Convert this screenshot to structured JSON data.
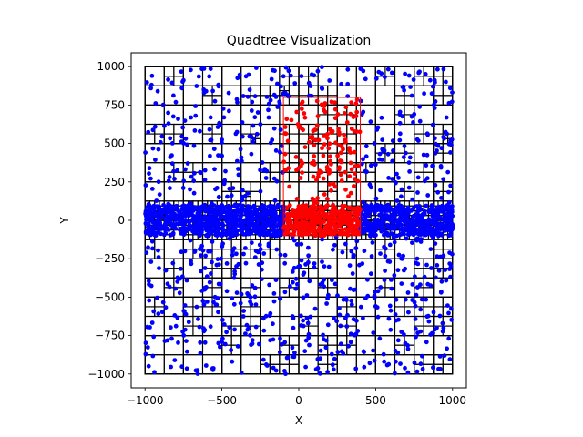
{
  "chart_data": {
    "type": "scatter",
    "title": "Quadtree Visualization",
    "xlabel": "X",
    "ylabel": "Y",
    "xlim": [
      -1090,
      1090
    ],
    "ylim": [
      -1090,
      1090
    ],
    "xticks": [
      -1000,
      -500,
      0,
      500,
      1000
    ],
    "yticks": [
      -1000,
      -750,
      -500,
      -250,
      0,
      250,
      500,
      750,
      1000
    ],
    "xtick_labels": [
      "−1000",
      "−500",
      "0",
      "500",
      "1000"
    ],
    "ytick_labels": [
      "−1000",
      "−750",
      "−500",
      "−250",
      "0",
      "250",
      "500",
      "750",
      "1000"
    ],
    "grid": false,
    "colors": {
      "points": "#0000ff",
      "query_points": "#ff0000",
      "quadtree_lines": "#000000",
      "query_rect": "#ff0000"
    },
    "boundary": {
      "x": [
        -1000,
        1000
      ],
      "y": [
        -1000,
        1000
      ]
    },
    "query_rect": {
      "x": [
        -100,
        400
      ],
      "y": [
        -100,
        800
      ]
    },
    "point_distribution": {
      "background": {
        "x": [
          -1000,
          1000
        ],
        "y": [
          -1000,
          1000
        ],
        "approx_count": 1050
      },
      "band": {
        "x": [
          -1000,
          1000
        ],
        "y": [
          -100,
          100
        ],
        "approx_count": 1500
      },
      "query_region": {
        "x": [
          -100,
          400
        ],
        "y": [
          -100,
          800
        ]
      }
    }
  }
}
